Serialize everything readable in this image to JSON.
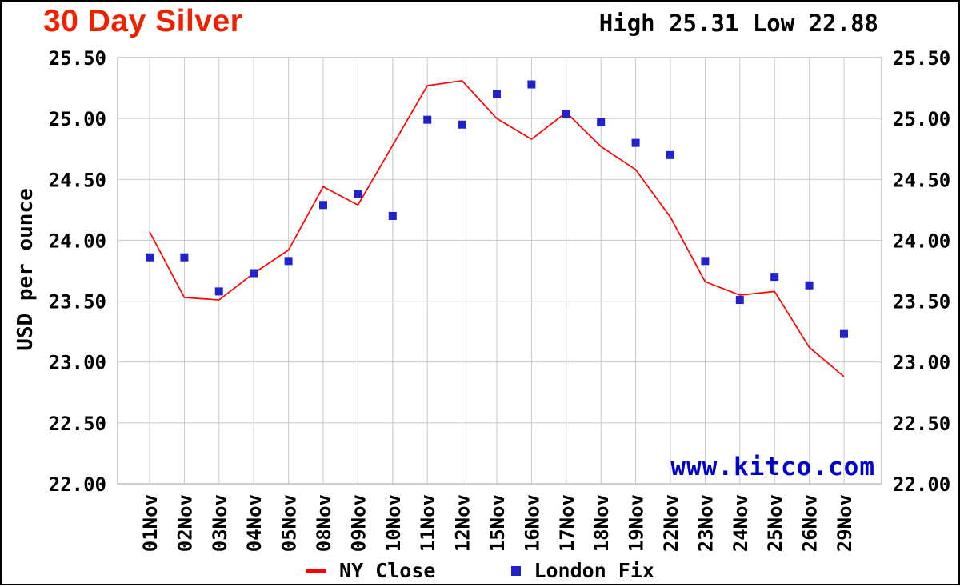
{
  "chart_data": {
    "type": "line",
    "title": "30 Day Silver",
    "high_low_text": "High 25.31 Low 22.88",
    "high": 25.31,
    "low": 22.88,
    "ylabel": "USD per ounce",
    "ylim": [
      22.0,
      25.5
    ],
    "ytick_step": 0.5,
    "grid": true,
    "legend_position": "bottom-center",
    "watermark": "www.kitco.com",
    "categories": [
      "01Nov",
      "02Nov",
      "03Nov",
      "04Nov",
      "05Nov",
      "08Nov",
      "09Nov",
      "10Nov",
      "11Nov",
      "12Nov",
      "15Nov",
      "16Nov",
      "17Nov",
      "18Nov",
      "19Nov",
      "22Nov",
      "23Nov",
      "24Nov",
      "25Nov",
      "26Nov",
      "29Nov"
    ],
    "series": [
      {
        "name": "NY Close",
        "type": "line",
        "color": "#ff0000",
        "values": [
          24.07,
          23.53,
          23.51,
          23.73,
          23.92,
          24.44,
          24.29,
          24.78,
          25.27,
          25.31,
          25.0,
          24.83,
          25.05,
          24.77,
          24.58,
          24.19,
          23.66,
          23.55,
          23.58,
          23.12,
          22.88
        ]
      },
      {
        "name": "London Fix",
        "type": "scatter",
        "marker": "square",
        "color": "#2222cc",
        "values": [
          23.86,
          23.86,
          23.58,
          23.73,
          23.83,
          24.29,
          24.38,
          24.2,
          24.99,
          24.95,
          25.2,
          25.28,
          25.04,
          24.97,
          24.8,
          24.7,
          23.83,
          23.51,
          23.7,
          23.63,
          23.23
        ]
      }
    ],
    "colors": {
      "title": "#ee2200",
      "watermark": "#0000cc",
      "grid": "#c8c8c8",
      "frame": "#a0a0a0",
      "text": "#000000"
    }
  }
}
